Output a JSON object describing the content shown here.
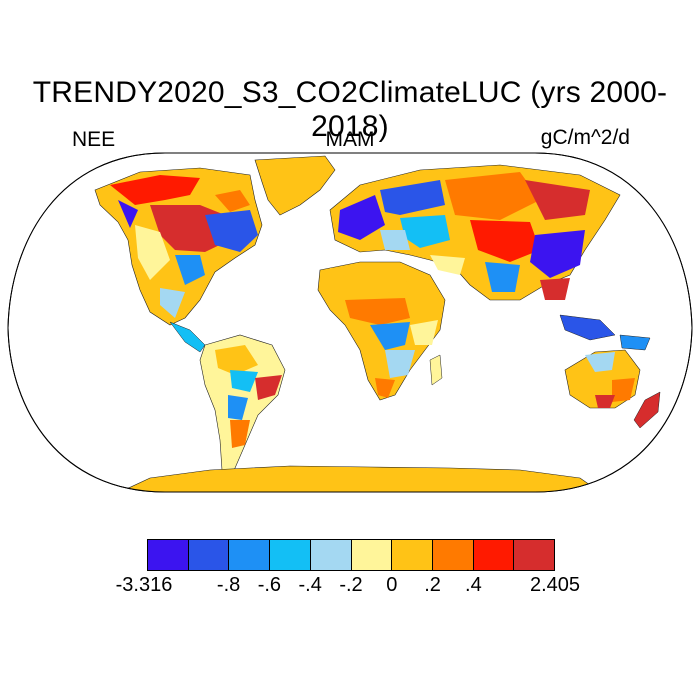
{
  "title": "TRENDY2020_S3_CO2ClimateLUC (yrs 2000-2018)",
  "label_left": "NEE",
  "label_center": "MAM",
  "label_right": "gC/m^2/d",
  "colorbar": {
    "colors": [
      "#3c14f0",
      "#2a55e8",
      "#1e90f5",
      "#13bff5",
      "#a4d8f2",
      "#fff59a",
      "#ffc316",
      "#ff7a00",
      "#ff1a00",
      "#d62d2d"
    ],
    "tick_labels": [
      "-3.316",
      "-.8",
      "-.6",
      "-.4",
      "-.2",
      "0",
      ".2",
      ".4",
      "2.405"
    ]
  },
  "map": {
    "projection": "Robinson",
    "ocean_color": "#ffffff",
    "antarctica_color": "#ffc316"
  }
}
